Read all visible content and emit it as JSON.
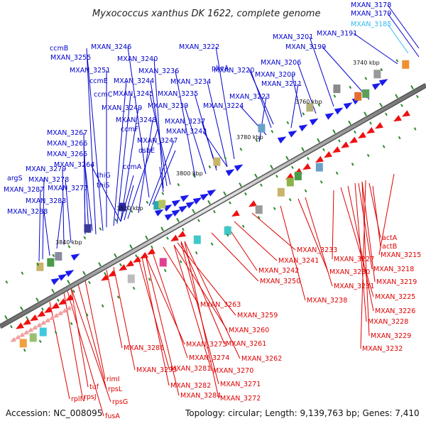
{
  "title": "Myxococcus xanthus DK 1622, complete genome",
  "accession": "Accession: NC_008095",
  "topology": "Topology: circular; Length: 9,139,763 bp; Genes: 7,410",
  "colors": {
    "forward_label": "#0000cc",
    "reverse_label": "#dd0000",
    "highlight_label": "#33bbee",
    "backbone_dark": "#555555",
    "forward_arrow": "#1a1aee",
    "reverse_arrow": "#ee1111",
    "tick": "#2a8a2a"
  },
  "scale_labels": [
    "3740 kbp",
    "3760 kbp",
    "3780 kbp",
    "3800 kbp",
    "3820 kbp",
    "3840 kbp"
  ],
  "forward_genes": [
    "MXAN_3178",
    "MXAN_3179",
    "MXAN_3185",
    "MXAN_3201",
    "MXAN_3191",
    "MXAN_3199",
    "MXAN_3222",
    "MXAN_3206",
    "ccmB",
    "MXAN_3246",
    "pheA",
    "MXAN_3220",
    "MXAN_3209",
    "MXAN_3255",
    "MXAN_3240",
    "MXAN_3211",
    "MXAN_3251",
    "MXAN_3236",
    "MXAN_3244",
    "MXAN_3234",
    "ccmE",
    "MXAN_3223",
    "ccmC",
    "MXAN_3245",
    "MXAN_3235",
    "MXAN_3224",
    "MXAN_3249",
    "MXAN_3239",
    "MXAN_3248",
    "MXAN_3237",
    "ccmF",
    "MXAN_3243",
    "MXAN_3267",
    "MXAN_3247",
    "MXAN_3266",
    "dsbE",
    "MXAN_3265",
    "MXAN_3264",
    "ccmA",
    "MXAN_3279",
    "thiG",
    "argS",
    "MXAN_3278",
    "thiS",
    "MXAN_3287",
    "MXAN_3277",
    "MXAN_3283",
    "MXAN_3288"
  ],
  "reverse_genes": [
    "actA",
    "actB",
    "MXAN_3233",
    "MXAN_3215",
    "MXAN_3241",
    "MXAN_3227",
    "MXAN_3242",
    "MXAN_3218",
    "MXAN_3230",
    "MXAN_3250",
    "MXAN_3219",
    "MXAN_3231",
    "MXAN_3238",
    "MXAN_3225",
    "MXAN_3263",
    "MXAN_3226",
    "MXAN_3259",
    "MXAN_3228",
    "MXAN_3260",
    "MXAN_3229",
    "MXAN_3273",
    "MXAN_3261",
    "MXAN_3286",
    "MXAN_3232",
    "MXAN_3274",
    "MXAN_3262",
    "MXAN_3281",
    "MXAN_3270",
    "MXAN_3293",
    "MXAN_3271",
    "rimI",
    "MXAN_3282",
    "rpsL",
    "tuf",
    "MXAN_3284",
    "MXAN_3272",
    "rplN",
    "rpsJ",
    "rpsG",
    "fusA"
  ]
}
